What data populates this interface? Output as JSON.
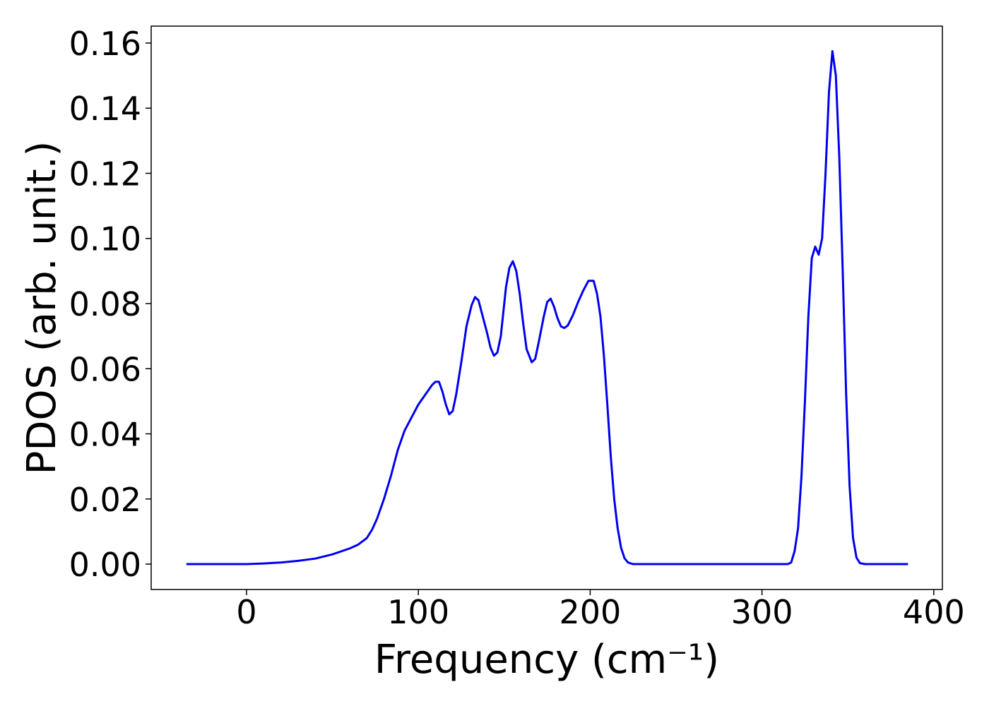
{
  "chart_data": {
    "type": "line",
    "xlabel": "Frequency (cm⁻¹)",
    "ylabel": "PDOS (arb. unit.)",
    "x": [
      -35,
      0,
      10,
      20,
      30,
      40,
      50,
      60,
      65,
      70,
      73,
      76,
      80,
      84,
      88,
      92,
      96,
      100,
      104,
      108,
      110,
      112,
      114,
      116,
      118,
      120,
      122,
      125,
      128,
      131,
      133,
      135,
      137,
      140,
      142,
      144,
      146,
      148,
      151,
      153,
      155,
      157,
      159,
      161,
      163,
      166,
      168,
      170,
      173,
      175,
      177,
      179,
      181,
      183,
      185,
      187,
      190,
      193,
      196,
      199,
      202,
      204,
      206,
      208,
      210,
      212,
      214,
      216,
      218,
      220,
      222,
      225,
      300,
      315,
      317,
      319,
      321,
      323,
      325,
      327,
      329,
      331,
      333,
      335,
      337,
      339,
      341,
      343,
      345,
      347,
      349,
      351,
      353,
      355,
      357,
      360,
      385
    ],
    "series": [
      {
        "name": "PDOS",
        "color": "#0000ee",
        "values": [
          0,
          0,
          0.0002,
          0.0005,
          0.001,
          0.0017,
          0.003,
          0.0048,
          0.006,
          0.008,
          0.0105,
          0.014,
          0.02,
          0.027,
          0.035,
          0.041,
          0.045,
          0.049,
          0.052,
          0.055,
          0.056,
          0.056,
          0.053,
          0.049,
          0.046,
          0.047,
          0.052,
          0.062,
          0.073,
          0.0795,
          0.082,
          0.081,
          0.077,
          0.071,
          0.0665,
          0.064,
          0.065,
          0.07,
          0.085,
          0.091,
          0.093,
          0.09,
          0.083,
          0.074,
          0.066,
          0.062,
          0.063,
          0.068,
          0.076,
          0.0805,
          0.0815,
          0.079,
          0.0755,
          0.073,
          0.0725,
          0.0733,
          0.0765,
          0.0805,
          0.084,
          0.087,
          0.087,
          0.083,
          0.076,
          0.064,
          0.049,
          0.033,
          0.02,
          0.011,
          0.005,
          0.0018,
          0.0005,
          0,
          0,
          0,
          0.0005,
          0.004,
          0.011,
          0.027,
          0.05,
          0.076,
          0.094,
          0.0975,
          0.095,
          0.1,
          0.12,
          0.145,
          0.1575,
          0.15,
          0.125,
          0.09,
          0.052,
          0.024,
          0.008,
          0.002,
          0.0003,
          0,
          0
        ]
      }
    ],
    "xlim": [
      -55.5,
      405
    ],
    "ylim": [
      -0.0078,
      0.1652
    ],
    "xticks": [
      0,
      100,
      200,
      300,
      400
    ],
    "yticks": [
      {
        "value": 0,
        "label": "0.00"
      },
      {
        "value": 0.02,
        "label": "0.02"
      },
      {
        "value": 0.04,
        "label": "0.04"
      },
      {
        "value": 0.06,
        "label": "0.06"
      },
      {
        "value": 0.08,
        "label": "0.08"
      },
      {
        "value": 0.1,
        "label": "0.10"
      },
      {
        "value": 0.12,
        "label": "0.12"
      },
      {
        "value": 0.14,
        "label": "0.14"
      },
      {
        "value": 0.16,
        "label": "0.16"
      }
    ],
    "grid": false
  }
}
